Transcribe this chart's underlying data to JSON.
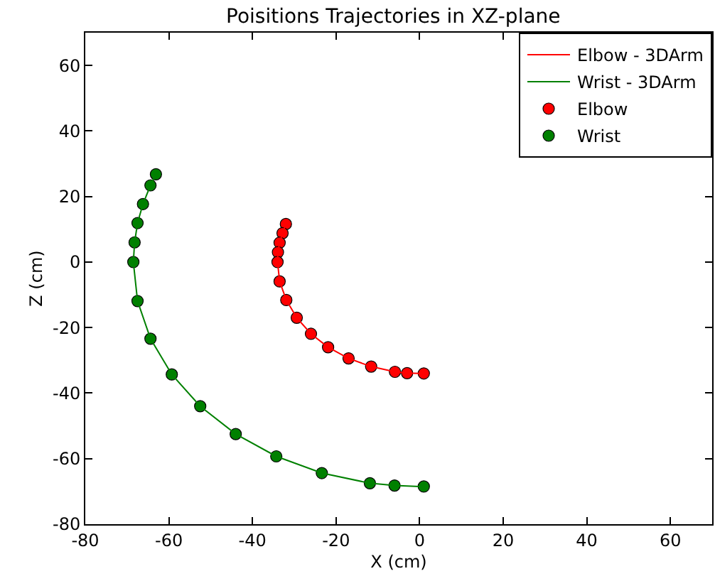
{
  "chart_data": {
    "type": "scatter",
    "title": "Poisitions Trajectories in XZ-plane",
    "xlabel": "X (cm)",
    "ylabel": "Z (cm)",
    "xlim": [
      -80,
      70
    ],
    "xticks": [
      -80,
      -60,
      -40,
      -20,
      0,
      20,
      40,
      60
    ],
    "ylim": [
      -80,
      70
    ],
    "yticks": [
      -80,
      -60,
      -40,
      -20,
      0,
      20,
      40,
      60
    ],
    "grid": false,
    "legend": "top right",
    "marker": "circle",
    "series": [
      {
        "name": "Elbow - 3DArm",
        "type": "line",
        "marker": "none",
        "color": "#ff0000",
        "x": [
          -32.0,
          -32.8,
          -33.5,
          -33.9,
          -34.0,
          -33.5,
          -31.9,
          -29.4,
          -26.0,
          -21.9,
          -17.0,
          -11.6,
          -5.9,
          -3.0,
          0,
          1
        ],
        "values": [
          11.6,
          8.8,
          5.9,
          3.0,
          0,
          -5.9,
          -11.6,
          -17.0,
          -21.9,
          -26.0,
          -29.4,
          -31.9,
          -33.5,
          -33.9,
          -34,
          -34
        ]
      },
      {
        "name": "Wrist - 3DArm",
        "type": "line",
        "marker": "none",
        "color": "#008000",
        "x": [
          -63.1,
          -64.4,
          -66.2,
          -67.5,
          -68.2,
          -68.5,
          -67.5,
          -64.4,
          -59.3,
          -52.5,
          -44.0,
          -34.3,
          -23.4,
          -11.9,
          -6.0,
          0,
          1
        ],
        "values": [
          26.8,
          23.4,
          17.7,
          11.9,
          6.0,
          0,
          -11.9,
          -23.4,
          -34.3,
          -44.0,
          -52.5,
          -59.3,
          -64.4,
          -67.5,
          -68.2,
          -68.5,
          -68.5
        ]
      },
      {
        "name": "Elbow",
        "color": "#ff0000",
        "x": [
          -32.0,
          -32.8,
          -33.5,
          -33.9,
          -34.0,
          -33.5,
          -31.9,
          -29.4,
          -26.0,
          -21.9,
          -17.0,
          -11.6,
          -5.9,
          -3.0,
          1
        ],
        "values": [
          11.6,
          8.8,
          5.9,
          3.0,
          0,
          -5.9,
          -11.6,
          -17.0,
          -21.9,
          -26.0,
          -29.4,
          -31.9,
          -33.5,
          -33.9,
          -34
        ]
      },
      {
        "name": "Wrist",
        "color": "#008000",
        "x": [
          -63.1,
          -64.4,
          -66.2,
          -67.5,
          -68.2,
          -68.5,
          -67.5,
          -64.4,
          -59.3,
          -52.5,
          -44.0,
          -34.3,
          -23.4,
          -11.9,
          -6.0,
          1
        ],
        "values": [
          26.8,
          23.4,
          17.7,
          11.9,
          6.0,
          0,
          -11.9,
          -23.4,
          -34.3,
          -44.0,
          -52.5,
          -59.3,
          -64.4,
          -67.5,
          -68.2,
          -68.5
        ]
      }
    ]
  }
}
